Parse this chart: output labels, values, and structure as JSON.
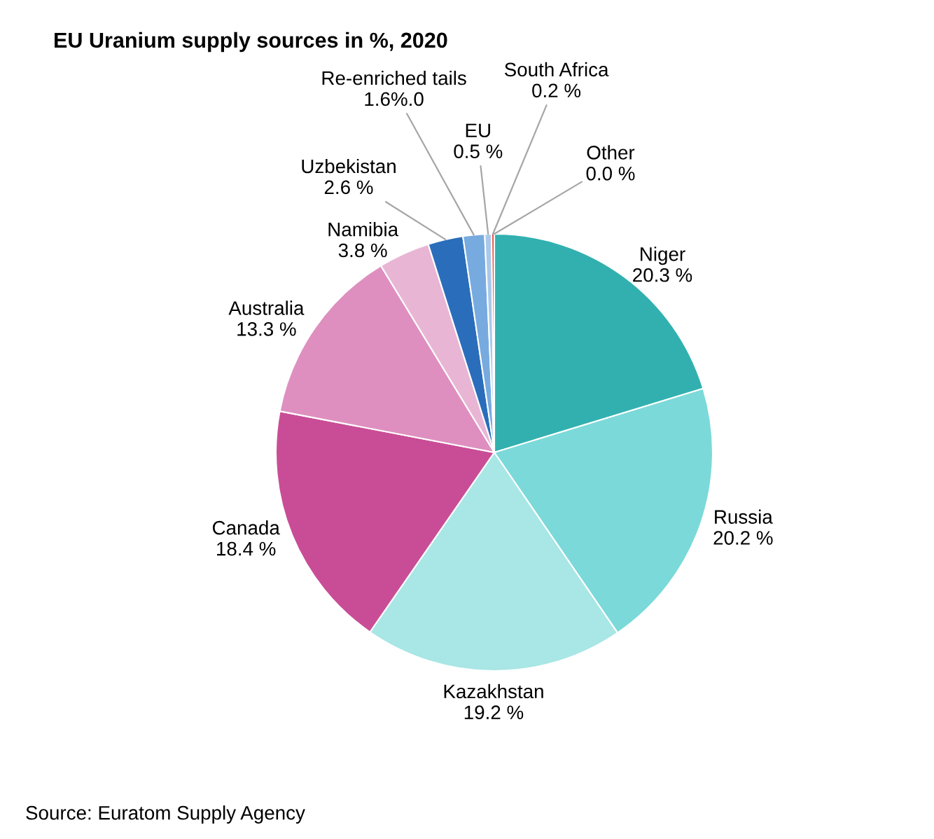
{
  "chart_data": {
    "type": "pie",
    "title": "EU Uranium supply sources in %, 2020",
    "categories": [
      "Niger",
      "Russia",
      "Kazakhstan",
      "Canada",
      "Australia",
      "Namibia",
      "Uzbekistan",
      "Re-enriched tails",
      "EU",
      "South Africa",
      "Other"
    ],
    "values": [
      20.3,
      20.2,
      19.2,
      18.4,
      13.3,
      3.8,
      2.6,
      1.6,
      0.5,
      0.2,
      0.0
    ],
    "colors": [
      "#32b0b0",
      "#7bd9d9",
      "#a9e6e6",
      "#c94d96",
      "#de8fbf",
      "#e8b6d4",
      "#2a6ebb",
      "#77aadf",
      "#a9c8ea",
      "#e03c31",
      "#b9a84d"
    ],
    "value_labels": [
      "20.3 %",
      "20.2 %",
      "19.2 %",
      "18.4 %",
      "13.3 %",
      "3.8 %",
      "2.6 %",
      "1.6%.0",
      "0.5 %",
      "0.2 %",
      "0.0 %"
    ],
    "annotations": [
      "Source: Euratom Supply Agency"
    ]
  }
}
